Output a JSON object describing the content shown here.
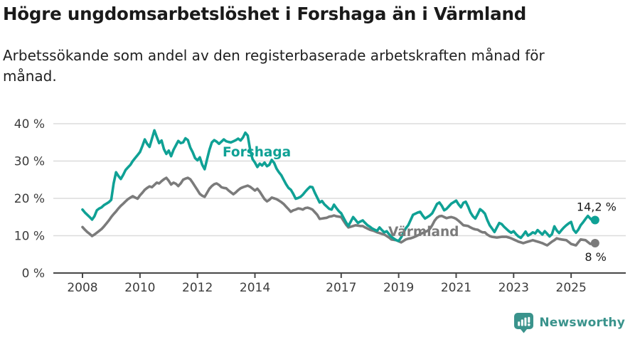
{
  "header": {
    "title": "Högre ungdomsarbetslöshet i Forshaga än i Värmland",
    "subtitle_lines": [
      "Arbetssökande som andel av den registerbaserade arbetskraften månad för",
      "månad."
    ]
  },
  "footer": {
    "brand": "Newsworthy",
    "brand_color": "#3A938C",
    "logo_icon": "bar-chart-speech-pin-icon"
  },
  "chart_data": {
    "type": "line",
    "title": "Högre ungdomsarbetslöshet i Forshaga än i Värmland",
    "subtitle": "Arbetssökande som andel av den registerbaserade arbetskraften månad för månad.",
    "unit": "%",
    "grid": true,
    "legend_position": "inline-labels-on-lines",
    "x_axis": {
      "tick_labels": [
        "2008",
        "2010",
        "2012",
        "2014",
        "2017",
        "2019",
        "2021",
        "2023",
        "2025"
      ],
      "tick_values": [
        2008,
        2010,
        2012,
        2014,
        2017,
        2019,
        2021,
        2023,
        2025
      ],
      "range": [
        2008.0,
        2025.92
      ],
      "interval": "monthly"
    },
    "y_axis": {
      "tick_labels": [
        "0 %",
        "10 %",
        "20 %",
        "30 %",
        "40 %"
      ],
      "tick_values": [
        0,
        10,
        20,
        30,
        40
      ],
      "range": [
        0,
        40
      ]
    },
    "colors": {
      "grid": "#DBDBDB",
      "axis": "#474747",
      "axis_text": "#3C3C3C",
      "value_label": "#1A1A1A"
    },
    "series": [
      {
        "name": "Forshaga",
        "color": "#0FA195",
        "end_label": "14,2 %",
        "end_value": 14.2,
        "start_year": 2008,
        "interval": "monthly",
        "values": [
          17.0,
          16.2,
          15.6,
          15.0,
          14.3,
          15.2,
          16.8,
          17.3,
          17.6,
          18.2,
          18.6,
          19.0,
          19.6,
          24.0,
          27.0,
          26.0,
          25.2,
          26.3,
          27.6,
          28.3,
          29.0,
          30.0,
          30.8,
          31.6,
          32.4,
          34.0,
          35.8,
          34.6,
          33.8,
          36.0,
          38.2,
          36.5,
          34.8,
          35.5,
          33.2,
          31.9,
          32.8,
          31.3,
          33.0,
          34.2,
          35.4,
          34.8,
          35.0,
          36.1,
          35.6,
          33.6,
          32.4,
          30.8,
          30.2,
          31.0,
          29.0,
          27.8,
          30.5,
          33.0,
          35.0,
          35.6,
          35.2,
          34.6,
          35.2,
          35.8,
          35.3,
          35.1,
          35.0,
          35.3,
          35.6,
          36.0,
          35.5,
          36.3,
          37.6,
          36.8,
          33.0,
          30.5,
          29.6,
          28.4,
          29.3,
          28.8,
          29.6,
          28.6,
          29.0,
          30.3,
          29.5,
          28.0,
          27.0,
          26.2,
          25.0,
          23.8,
          22.8,
          22.3,
          21.2,
          19.9,
          20.1,
          20.4,
          21.0,
          21.8,
          22.5,
          23.1,
          23.0,
          21.5,
          20.2,
          18.9,
          19.3,
          18.4,
          17.8,
          17.2,
          17.0,
          18.3,
          17.4,
          16.6,
          16.0,
          14.8,
          13.6,
          12.6,
          13.8,
          15.0,
          14.2,
          13.4,
          13.8,
          14.1,
          13.4,
          12.8,
          12.4,
          11.9,
          11.6,
          11.3,
          12.2,
          11.5,
          10.9,
          11.2,
          10.4,
          9.7,
          9.2,
          8.8,
          8.6,
          9.5,
          10.8,
          12.0,
          12.8,
          14.2,
          15.6,
          15.9,
          16.2,
          16.4,
          15.4,
          14.6,
          15.0,
          15.4,
          16.0,
          17.2,
          18.5,
          18.9,
          18.0,
          16.8,
          17.2,
          17.9,
          18.6,
          19.0,
          19.4,
          18.4,
          17.6,
          18.8,
          19.1,
          17.8,
          16.2,
          15.2,
          14.6,
          15.8,
          17.1,
          16.6,
          15.9,
          14.2,
          12.8,
          11.9,
          11.0,
          12.2,
          13.4,
          13.1,
          12.4,
          11.8,
          11.2,
          10.8,
          11.2,
          10.4,
          9.8,
          9.4,
          10.2,
          11.1,
          10.0,
          10.4,
          10.9,
          10.6,
          11.5,
          10.9,
          10.3,
          11.2,
          10.5,
          9.8,
          10.4,
          12.5,
          11.4,
          10.7,
          11.5,
          12.2,
          12.8,
          13.3,
          13.7,
          11.6,
          10.8,
          11.6,
          12.8,
          13.6,
          14.5,
          15.3,
          14.6,
          14.0,
          14.2
        ]
      },
      {
        "name": "Värmland",
        "color": "#7B7B7B",
        "end_label": "8 %",
        "end_value": 8.0,
        "start_year": 2008,
        "interval": "monthly",
        "values": [
          12.3,
          11.6,
          11.0,
          10.5,
          9.9,
          10.3,
          10.8,
          11.3,
          11.8,
          12.5,
          13.3,
          14.1,
          15.0,
          15.8,
          16.5,
          17.3,
          18.0,
          18.6,
          19.2,
          19.8,
          20.2,
          20.6,
          20.2,
          19.9,
          20.8,
          21.5,
          22.3,
          22.8,
          23.2,
          23.0,
          23.6,
          24.2,
          24.0,
          24.6,
          25.1,
          25.5,
          24.7,
          23.7,
          24.2,
          23.9,
          23.3,
          24.0,
          25.0,
          25.3,
          25.5,
          25.1,
          24.2,
          23.2,
          22.2,
          21.2,
          20.7,
          20.4,
          21.5,
          22.6,
          23.3,
          23.8,
          24.0,
          23.6,
          23.0,
          22.8,
          22.7,
          22.1,
          21.6,
          21.1,
          21.6,
          22.2,
          22.7,
          23.0,
          23.2,
          23.4,
          23.1,
          22.6,
          22.1,
          22.6,
          21.8,
          20.8,
          19.8,
          19.2,
          19.6,
          20.2,
          20.0,
          19.8,
          19.4,
          19.0,
          18.5,
          17.8,
          17.1,
          16.4,
          16.8,
          17.0,
          17.3,
          17.2,
          17.0,
          17.4,
          17.5,
          17.3,
          17.0,
          16.3,
          15.6,
          14.5,
          14.6,
          14.7,
          14.8,
          15.1,
          15.2,
          15.4,
          15.2,
          15.1,
          15.0,
          14.0,
          13.0,
          12.2,
          12.4,
          12.6,
          12.8,
          12.7,
          12.6,
          12.6,
          12.2,
          11.9,
          11.6,
          11.4,
          11.2,
          10.9,
          10.7,
          10.5,
          10.3,
          9.9,
          9.5,
          9.0,
          8.9,
          8.8,
          8.5,
          8.2,
          8.6,
          9.0,
          9.2,
          9.3,
          9.5,
          9.8,
          10.1,
          10.4,
          10.7,
          11.0,
          11.3,
          11.8,
          12.8,
          14.0,
          14.8,
          15.2,
          15.3,
          15.0,
          14.7,
          14.9,
          15.0,
          14.8,
          14.5,
          14.0,
          13.4,
          12.8,
          12.7,
          12.6,
          12.2,
          11.9,
          11.7,
          11.6,
          11.2,
          10.9,
          10.9,
          10.3,
          9.9,
          9.7,
          9.6,
          9.5,
          9.6,
          9.7,
          9.7,
          9.7,
          9.5,
          9.3,
          9.0,
          8.7,
          8.4,
          8.2,
          8.0,
          8.2,
          8.4,
          8.6,
          8.8,
          8.6,
          8.4,
          8.2,
          8.0,
          7.7,
          7.4,
          7.9,
          8.4,
          8.8,
          9.3,
          9.1,
          9.0,
          8.9,
          8.8,
          8.3,
          7.8,
          7.6,
          7.4,
          8.2,
          9.0,
          8.9,
          8.8,
          8.3,
          7.8,
          7.9,
          8.0
        ]
      }
    ]
  }
}
